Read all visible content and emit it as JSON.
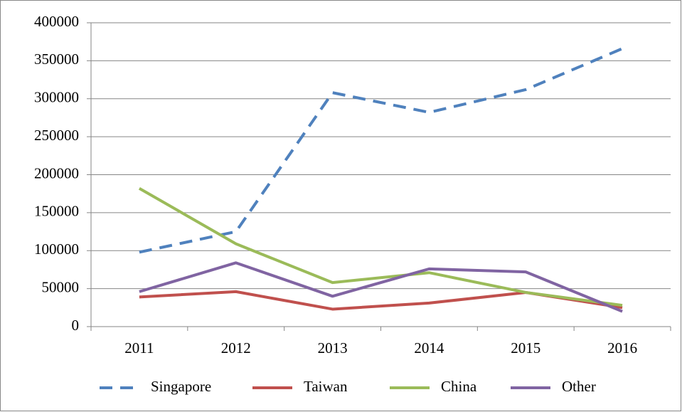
{
  "chart_data": {
    "type": "line",
    "categories": [
      "2011",
      "2012",
      "2013",
      "2014",
      "2015",
      "2016"
    ],
    "series": [
      {
        "name": "Singapore",
        "color": "#4f81bd",
        "dashed": true,
        "values": [
          98000,
          125000,
          308000,
          282000,
          312000,
          366000
        ]
      },
      {
        "name": "Taiwan",
        "color": "#c0504d",
        "dashed": false,
        "values": [
          39000,
          46000,
          23000,
          31000,
          45000,
          25000
        ]
      },
      {
        "name": "China",
        "color": "#9bbb59",
        "dashed": false,
        "values": [
          182000,
          109000,
          58000,
          71000,
          45000,
          28000
        ]
      },
      {
        "name": "Other",
        "color": "#8064a2",
        "dashed": false,
        "values": [
          46000,
          84000,
          40000,
          76000,
          72000,
          20000
        ]
      }
    ],
    "ylim": [
      0,
      400000
    ],
    "yticks": [
      0,
      50000,
      100000,
      150000,
      200000,
      250000,
      300000,
      350000,
      400000
    ],
    "grid": true,
    "legend": "bottom"
  }
}
